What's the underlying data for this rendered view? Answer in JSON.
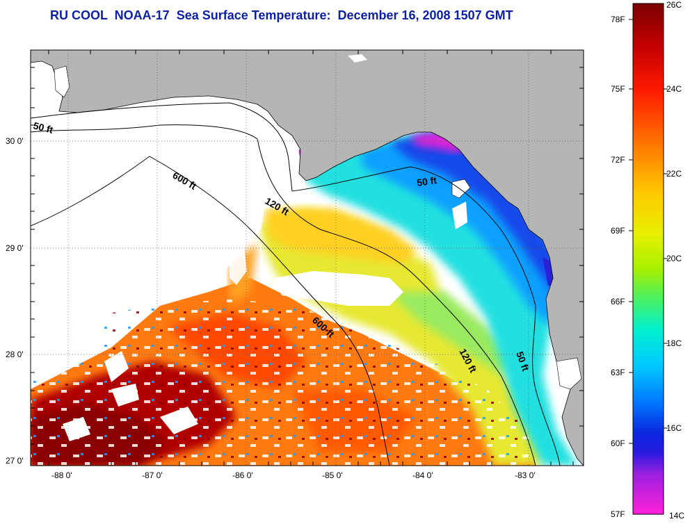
{
  "title": "RU COOL  NOAA-17  Sea Surface Temperature:  December 16, 2008 1507 GMT",
  "axes": {
    "lat_labels": [
      "30 0'",
      "29 0'",
      "28 0'",
      "27 0'"
    ],
    "lon_labels": [
      "-88 0'",
      "-87 0'",
      "-86 0'",
      "-85 0'",
      "-84 0'",
      "-83 0'"
    ]
  },
  "isobaths": [
    {
      "id": "50-west",
      "label": "50 ft"
    },
    {
      "id": "600-north",
      "label": "600 ft"
    },
    {
      "id": "120-north",
      "label": "120 ft"
    },
    {
      "id": "50-east",
      "label": "50 ft"
    },
    {
      "id": "600-south",
      "label": "600 ft"
    },
    {
      "id": "120-south",
      "label": "120 ft"
    },
    {
      "id": "50-south",
      "label": "50 ft"
    }
  ],
  "colorbar": {
    "fahrenheit": [
      "78F",
      "75F",
      "72F",
      "69F",
      "66F",
      "63F",
      "60F",
      "57F"
    ],
    "celsius": [
      "26C",
      "24C",
      "22C",
      "20C",
      "18C",
      "16C",
      "14C"
    ]
  },
  "colors": {
    "title": "#0b1fa8",
    "land": "#b5b5b5",
    "cloud": "#ffffff"
  }
}
